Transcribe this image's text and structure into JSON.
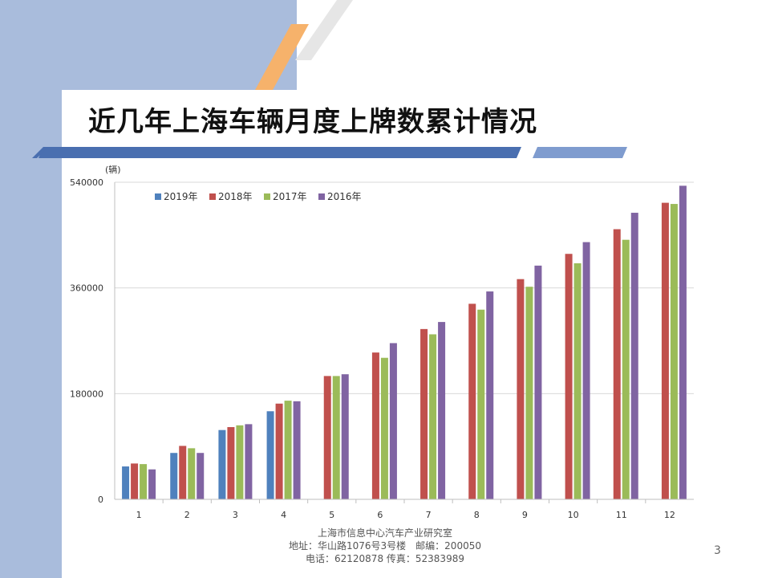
{
  "slide": {
    "title": "近几年上海车辆月度上牌数累计情况",
    "page_number": "3"
  },
  "footer": {
    "line1": "上海市信息中心汽车产业研究室",
    "line2": "地址：华山路1076号3号楼　邮编：200050",
    "line3": "电话：62120878  传真：52383989"
  },
  "theme": {
    "band_color": "#a9bcdc",
    "title_bar_color": "#4a6fb0",
    "accent_orange": "#f6b26b"
  },
  "chart_data": {
    "type": "bar",
    "ylabel": "(辆)",
    "xlabel": "",
    "ylim": [
      0,
      540000
    ],
    "yticks": [
      0,
      180000,
      360000,
      540000
    ],
    "ytick_labels": [
      "0",
      "180000",
      "360000",
      "540000"
    ],
    "grid": true,
    "legend_position": "top-left",
    "categories": [
      "1",
      "2",
      "3",
      "4",
      "5",
      "6",
      "7",
      "8",
      "9",
      "10",
      "11",
      "12"
    ],
    "series": [
      {
        "name": "2019年",
        "color": "#4f81bd",
        "values": [
          56000,
          79000,
          118000,
          150000,
          null,
          null,
          null,
          null,
          null,
          null,
          null,
          null
        ]
      },
      {
        "name": "2018年",
        "color": "#c0504d",
        "values": [
          61000,
          91000,
          123000,
          163000,
          210000,
          250000,
          290000,
          333000,
          375000,
          418000,
          460000,
          505000
        ]
      },
      {
        "name": "2017年",
        "color": "#9bbb59",
        "values": [
          60000,
          87000,
          126000,
          168000,
          210000,
          241000,
          281000,
          323000,
          362000,
          402000,
          442000,
          503000
        ]
      },
      {
        "name": "2016年",
        "color": "#8064a2",
        "values": [
          51000,
          79000,
          128000,
          167000,
          213000,
          266000,
          302000,
          354000,
          398000,
          438000,
          488000,
          534000
        ]
      }
    ]
  }
}
